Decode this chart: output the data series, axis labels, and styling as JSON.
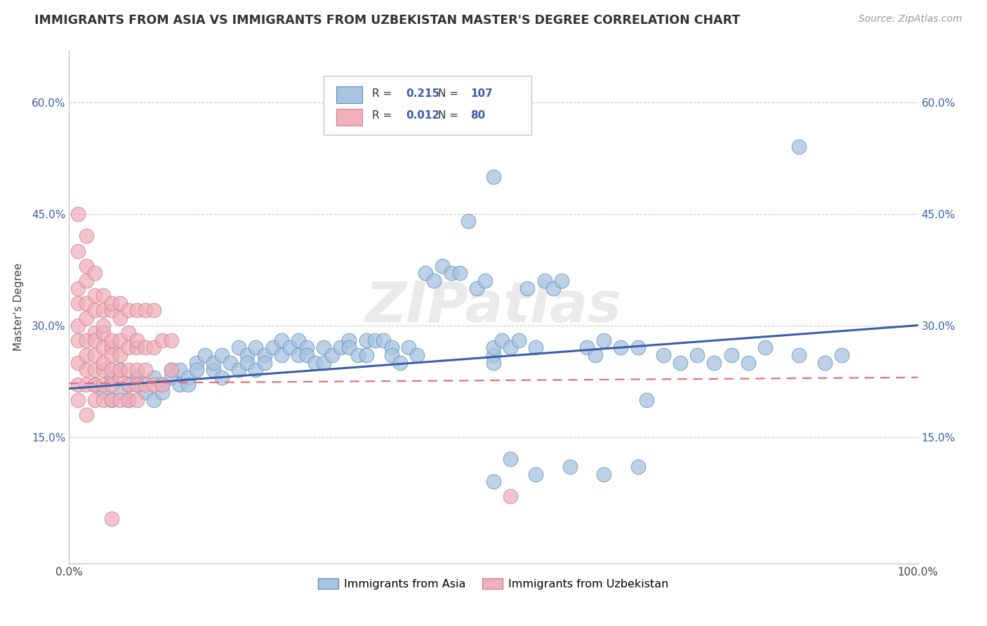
{
  "title": "IMMIGRANTS FROM ASIA VS IMMIGRANTS FROM UZBEKISTAN MASTER'S DEGREE CORRELATION CHART",
  "source": "Source: ZipAtlas.com",
  "ylabel_label": "Master's Degree",
  "watermark": "ZIPatlas",
  "background_color": "#ffffff",
  "grid_color": "#c8c8c8",
  "blue_line_color": "#3a5fa8",
  "pink_line_color": "#e07080",
  "blue_dot_color": "#a8c4e0",
  "pink_dot_color": "#f0b0bc",
  "blue_dot_edge": "#6090c0",
  "pink_dot_edge": "#d08090",
  "asia_R": 0.215,
  "uzbek_R": 0.012,
  "asia_N": 107,
  "uzbek_N": 80,
  "legend_blue_R": "0.215",
  "legend_blue_N": "107",
  "legend_pink_R": "0.012",
  "legend_pink_N": "80",
  "bottom_label_asia": "Immigrants from Asia",
  "bottom_label_uzbek": "Immigrants from Uzbekistan",
  "ytick_vals": [
    0.15,
    0.3,
    0.45,
    0.6
  ],
  "ytick_labels": [
    "15.0%",
    "30.0%",
    "45.0%",
    "60.0%"
  ],
  "xlim": [
    0.0,
    1.0
  ],
  "ylim": [
    -0.02,
    0.67
  ],
  "asia_line_x0": 0.0,
  "asia_line_y0": 0.215,
  "asia_line_x1": 1.0,
  "asia_line_y1": 0.3,
  "uzbek_line_x0": 0.0,
  "uzbek_line_y0": 0.222,
  "uzbek_line_x1": 1.0,
  "uzbek_line_y1": 0.23
}
